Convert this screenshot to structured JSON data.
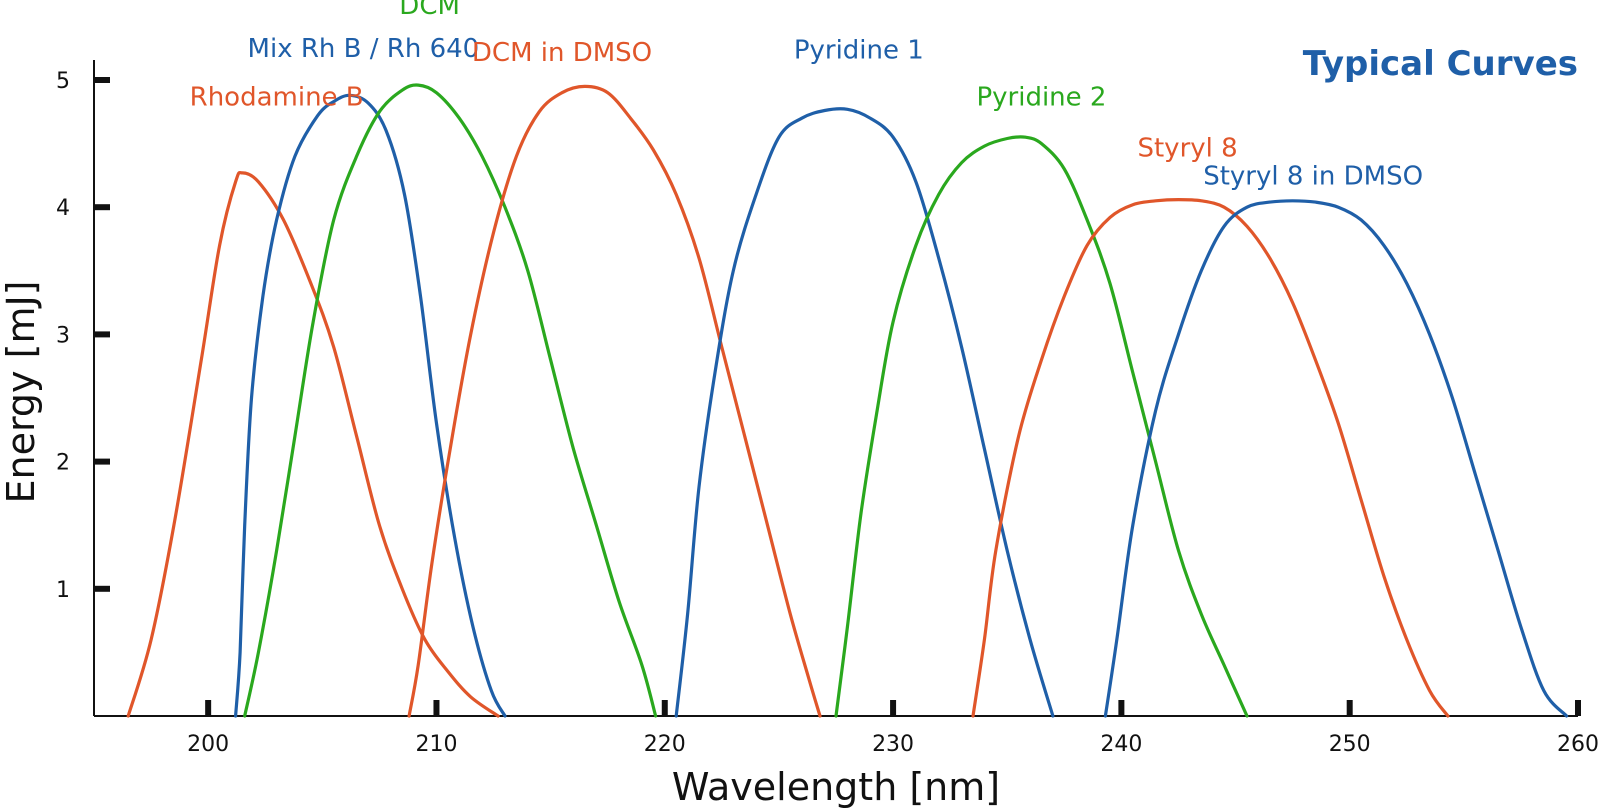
{
  "chart_data": {
    "type": "line",
    "title": "Typical Curves",
    "title_color": "#1f5fa8",
    "xlabel": "Wavelength [nm]",
    "ylabel": "Energy [mJ]",
    "xlim": [
      195,
      260
    ],
    "ylim": [
      0,
      5
    ],
    "x_ticks": [
      200,
      210,
      220,
      230,
      240,
      250,
      260
    ],
    "y_ticks": [
      1,
      2,
      3,
      4,
      5
    ],
    "grid": false,
    "legend": "none",
    "series": [
      {
        "name": "Rhodamine B",
        "color": "#e0562a",
        "points": [
          [
            196.5,
            0
          ],
          [
            197.5,
            0.6
          ],
          [
            198.5,
            1.5
          ],
          [
            199.7,
            2.8
          ],
          [
            200.5,
            3.7
          ],
          [
            201.2,
            4.2
          ],
          [
            201.5,
            4.27
          ],
          [
            202.2,
            4.2
          ],
          [
            203.3,
            3.9
          ],
          [
            204.5,
            3.4
          ],
          [
            205.5,
            2.9
          ],
          [
            206.5,
            2.2
          ],
          [
            207.5,
            1.5
          ],
          [
            208.5,
            1.0
          ],
          [
            209.5,
            0.6
          ],
          [
            210.5,
            0.35
          ],
          [
            211.5,
            0.15
          ],
          [
            212.7,
            0
          ]
        ]
      },
      {
        "name": "Mix Rh B / Rh 640",
        "color": "#1f5fa8",
        "points": [
          [
            201.2,
            0
          ],
          [
            201.4,
            0.5
          ],
          [
            201.6,
            1.5
          ],
          [
            201.9,
            2.5
          ],
          [
            202.4,
            3.3
          ],
          [
            203,
            3.9
          ],
          [
            203.8,
            4.4
          ],
          [
            204.8,
            4.72
          ],
          [
            205.5,
            4.83
          ],
          [
            206.2,
            4.88
          ],
          [
            207,
            4.82
          ],
          [
            207.8,
            4.6
          ],
          [
            208.6,
            4.1
          ],
          [
            209.3,
            3.3
          ],
          [
            210,
            2.3
          ],
          [
            210.8,
            1.4
          ],
          [
            211.6,
            0.7
          ],
          [
            212.4,
            0.2
          ],
          [
            213,
            0
          ]
        ]
      },
      {
        "name": "DCM",
        "color": "#2aa81e",
        "points": [
          [
            201.6,
            0
          ],
          [
            202.2,
            0.5
          ],
          [
            203,
            1.3
          ],
          [
            203.8,
            2.2
          ],
          [
            204.6,
            3.1
          ],
          [
            205.5,
            3.9
          ],
          [
            206.5,
            4.4
          ],
          [
            207.5,
            4.75
          ],
          [
            208.5,
            4.92
          ],
          [
            209.2,
            4.96
          ],
          [
            210,
            4.9
          ],
          [
            211,
            4.7
          ],
          [
            212,
            4.4
          ],
          [
            213,
            4.0
          ],
          [
            214,
            3.5
          ],
          [
            215,
            2.8
          ],
          [
            216,
            2.1
          ],
          [
            217,
            1.5
          ],
          [
            218,
            0.9
          ],
          [
            219,
            0.4
          ],
          [
            219.6,
            0
          ]
        ]
      },
      {
        "name": "DCM in DMSO",
        "color": "#e0562a",
        "points": [
          [
            208.8,
            0
          ],
          [
            209.2,
            0.4
          ],
          [
            209.8,
            1.2
          ],
          [
            210.6,
            2.1
          ],
          [
            211.5,
            3.0
          ],
          [
            212.5,
            3.8
          ],
          [
            213.5,
            4.4
          ],
          [
            214.5,
            4.75
          ],
          [
            215.5,
            4.9
          ],
          [
            216.5,
            4.95
          ],
          [
            217.5,
            4.9
          ],
          [
            218.5,
            4.7
          ],
          [
            219.5,
            4.45
          ],
          [
            220.5,
            4.1
          ],
          [
            221.5,
            3.6
          ],
          [
            222.5,
            2.9
          ],
          [
            223.5,
            2.2
          ],
          [
            224.5,
            1.5
          ],
          [
            225.5,
            0.8
          ],
          [
            226.3,
            0.3
          ],
          [
            226.8,
            0
          ]
        ]
      },
      {
        "name": "Pyridine 1",
        "color": "#1f5fa8",
        "points": [
          [
            220.5,
            0
          ],
          [
            221,
            0.8
          ],
          [
            221.5,
            1.8
          ],
          [
            222.2,
            2.7
          ],
          [
            223,
            3.5
          ],
          [
            224,
            4.1
          ],
          [
            225,
            4.55
          ],
          [
            226,
            4.7
          ],
          [
            227,
            4.76
          ],
          [
            228,
            4.77
          ],
          [
            229,
            4.7
          ],
          [
            230,
            4.55
          ],
          [
            231,
            4.2
          ],
          [
            232,
            3.6
          ],
          [
            233,
            2.9
          ],
          [
            234,
            2.1
          ],
          [
            235,
            1.3
          ],
          [
            236,
            0.6
          ],
          [
            237,
            0
          ]
        ]
      },
      {
        "name": "Pyridine 2",
        "color": "#2aa81e",
        "points": [
          [
            227.5,
            0
          ],
          [
            228,
            0.7
          ],
          [
            228.6,
            1.6
          ],
          [
            229.3,
            2.4
          ],
          [
            230,
            3.1
          ],
          [
            231,
            3.7
          ],
          [
            232,
            4.1
          ],
          [
            233,
            4.35
          ],
          [
            234,
            4.48
          ],
          [
            235,
            4.54
          ],
          [
            235.8,
            4.55
          ],
          [
            236.5,
            4.5
          ],
          [
            237.5,
            4.3
          ],
          [
            238.5,
            3.9
          ],
          [
            239.5,
            3.4
          ],
          [
            240.5,
            2.7
          ],
          [
            241.5,
            2.0
          ],
          [
            242.5,
            1.3
          ],
          [
            243.5,
            0.8
          ],
          [
            244.5,
            0.4
          ],
          [
            245.5,
            0
          ]
        ]
      },
      {
        "name": "Styryl 8",
        "color": "#e0562a",
        "points": [
          [
            233.5,
            0
          ],
          [
            234,
            0.6
          ],
          [
            234.5,
            1.3
          ],
          [
            235.5,
            2.2
          ],
          [
            236.5,
            2.8
          ],
          [
            237.5,
            3.3
          ],
          [
            238.5,
            3.7
          ],
          [
            239.5,
            3.92
          ],
          [
            240.5,
            4.02
          ],
          [
            241.5,
            4.05
          ],
          [
            242.5,
            4.06
          ],
          [
            243.5,
            4.05
          ],
          [
            244.5,
            4.0
          ],
          [
            245.5,
            3.85
          ],
          [
            246.5,
            3.6
          ],
          [
            247.5,
            3.25
          ],
          [
            248.5,
            2.8
          ],
          [
            249.5,
            2.3
          ],
          [
            250.5,
            1.7
          ],
          [
            251.5,
            1.1
          ],
          [
            252.5,
            0.6
          ],
          [
            253.5,
            0.2
          ],
          [
            254.3,
            0
          ]
        ]
      },
      {
        "name": "Styryl 8 in DMSO",
        "color": "#1f5fa8",
        "points": [
          [
            239.3,
            0
          ],
          [
            239.8,
            0.6
          ],
          [
            240.5,
            1.5
          ],
          [
            241.5,
            2.4
          ],
          [
            242.5,
            3.0
          ],
          [
            243.5,
            3.5
          ],
          [
            244.5,
            3.85
          ],
          [
            245.5,
            4.0
          ],
          [
            246.5,
            4.04
          ],
          [
            247.5,
            4.05
          ],
          [
            248.5,
            4.04
          ],
          [
            249.5,
            4.0
          ],
          [
            250.5,
            3.9
          ],
          [
            251.5,
            3.7
          ],
          [
            252.5,
            3.4
          ],
          [
            253.5,
            3.0
          ],
          [
            254.5,
            2.5
          ],
          [
            255.5,
            1.9
          ],
          [
            256.5,
            1.3
          ],
          [
            257.5,
            0.7
          ],
          [
            258.5,
            0.2
          ],
          [
            259.5,
            0
          ]
        ]
      }
    ],
    "annotations": [
      {
        "text": "Rhodamine B",
        "series": "Rhodamine B",
        "x": 203,
        "y": 4.8,
        "color": "#e0562a"
      },
      {
        "text": "Mix Rh B / Rh 640",
        "series": "Mix Rh B / Rh 640",
        "x": 206.8,
        "y": 5.18,
        "color": "#1f5fa8"
      },
      {
        "text": "DCM",
        "series": "DCM",
        "x": 209.7,
        "y": 5.52,
        "color": "#2aa81e"
      },
      {
        "text": "DCM in DMSO",
        "series": "DCM in DMSO",
        "x": 215.5,
        "y": 5.15,
        "color": "#e0562a"
      },
      {
        "text": "Pyridine 1",
        "series": "Pyridine 1",
        "x": 228.5,
        "y": 5.17,
        "color": "#1f5fa8"
      },
      {
        "text": "Pyridine 2",
        "series": "Pyridine 2",
        "x": 236.5,
        "y": 4.8,
        "color": "#2aa81e"
      },
      {
        "text": "Styryl 8",
        "series": "Styryl 8",
        "x": 242.9,
        "y": 4.4,
        "color": "#e0562a"
      },
      {
        "text": "Styryl 8 in DMSO",
        "series": "Styryl 8 in DMSO",
        "x": 248.4,
        "y": 4.18,
        "color": "#1f5fa8"
      }
    ]
  }
}
